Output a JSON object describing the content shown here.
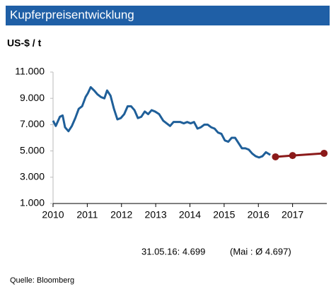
{
  "chart_data": {
    "type": "line",
    "title": "Kupferpreisentwicklung",
    "y_label": "US-$ / t",
    "xlim": [
      2010,
      2018
    ],
    "xticks": [
      2010,
      2011,
      2012,
      2013,
      2014,
      2015,
      2016,
      2017
    ],
    "ylim": [
      1000,
      11000
    ],
    "yticks": [
      {
        "value": 1000,
        "label": "1.000"
      },
      {
        "value": 3000,
        "label": "3.000"
      },
      {
        "value": 5000,
        "label": "5.000"
      },
      {
        "value": 7000,
        "label": "7.000"
      },
      {
        "value": 9000,
        "label": "9.000"
      },
      {
        "value": 11000,
        "label": "11.000"
      }
    ],
    "grid": false,
    "series": [
      {
        "color": "#1f5f99",
        "markers": false,
        "x": [
          2010.0,
          2010.08,
          2010.2,
          2010.28,
          2010.35,
          2010.45,
          2010.55,
          2010.65,
          2010.75,
          2010.85,
          2010.95,
          2011.02,
          2011.1,
          2011.2,
          2011.3,
          2011.4,
          2011.5,
          2011.58,
          2011.68,
          2011.78,
          2011.88,
          2011.98,
          2012.08,
          2012.18,
          2012.28,
          2012.38,
          2012.48,
          2012.58,
          2012.68,
          2012.78,
          2012.88,
          2012.98,
          2013.1,
          2013.22,
          2013.32,
          2013.42,
          2013.52,
          2013.62,
          2013.72,
          2013.82,
          2013.92,
          2014.02,
          2014.12,
          2014.22,
          2014.32,
          2014.42,
          2014.52,
          2014.62,
          2014.72,
          2014.82,
          2014.92,
          2015.02,
          2015.12,
          2015.22,
          2015.32,
          2015.42,
          2015.52,
          2015.62,
          2015.72,
          2015.82,
          2015.92,
          2016.02,
          2016.12,
          2016.22,
          2016.35
        ],
        "values": [
          7300,
          6900,
          7600,
          7700,
          6800,
          6500,
          6900,
          7500,
          8200,
          8400,
          9100,
          9400,
          9850,
          9600,
          9300,
          9100,
          9000,
          9600,
          9200,
          8200,
          7400,
          7500,
          7800,
          8400,
          8400,
          8100,
          7500,
          7600,
          8000,
          7800,
          8100,
          8000,
          7800,
          7300,
          7100,
          6900,
          7200,
          7200,
          7200,
          7100,
          7200,
          7100,
          7200,
          6700,
          6800,
          7000,
          7000,
          6800,
          6700,
          6400,
          6300,
          5800,
          5700,
          6000,
          6000,
          5600,
          5200,
          5200,
          5100,
          4800,
          4600,
          4500,
          4600,
          4900,
          4700
        ]
      },
      {
        "color": "#8b1a1a",
        "markers": true,
        "x": [
          2016.5,
          2017.0,
          2017.92
        ],
        "values": [
          4550,
          4650,
          4820
        ]
      }
    ],
    "annotation": "31.05.16: 4.699",
    "annotation2": "(Mai : Ø  4.697)",
    "source": "Quelle:  Bloomberg"
  }
}
